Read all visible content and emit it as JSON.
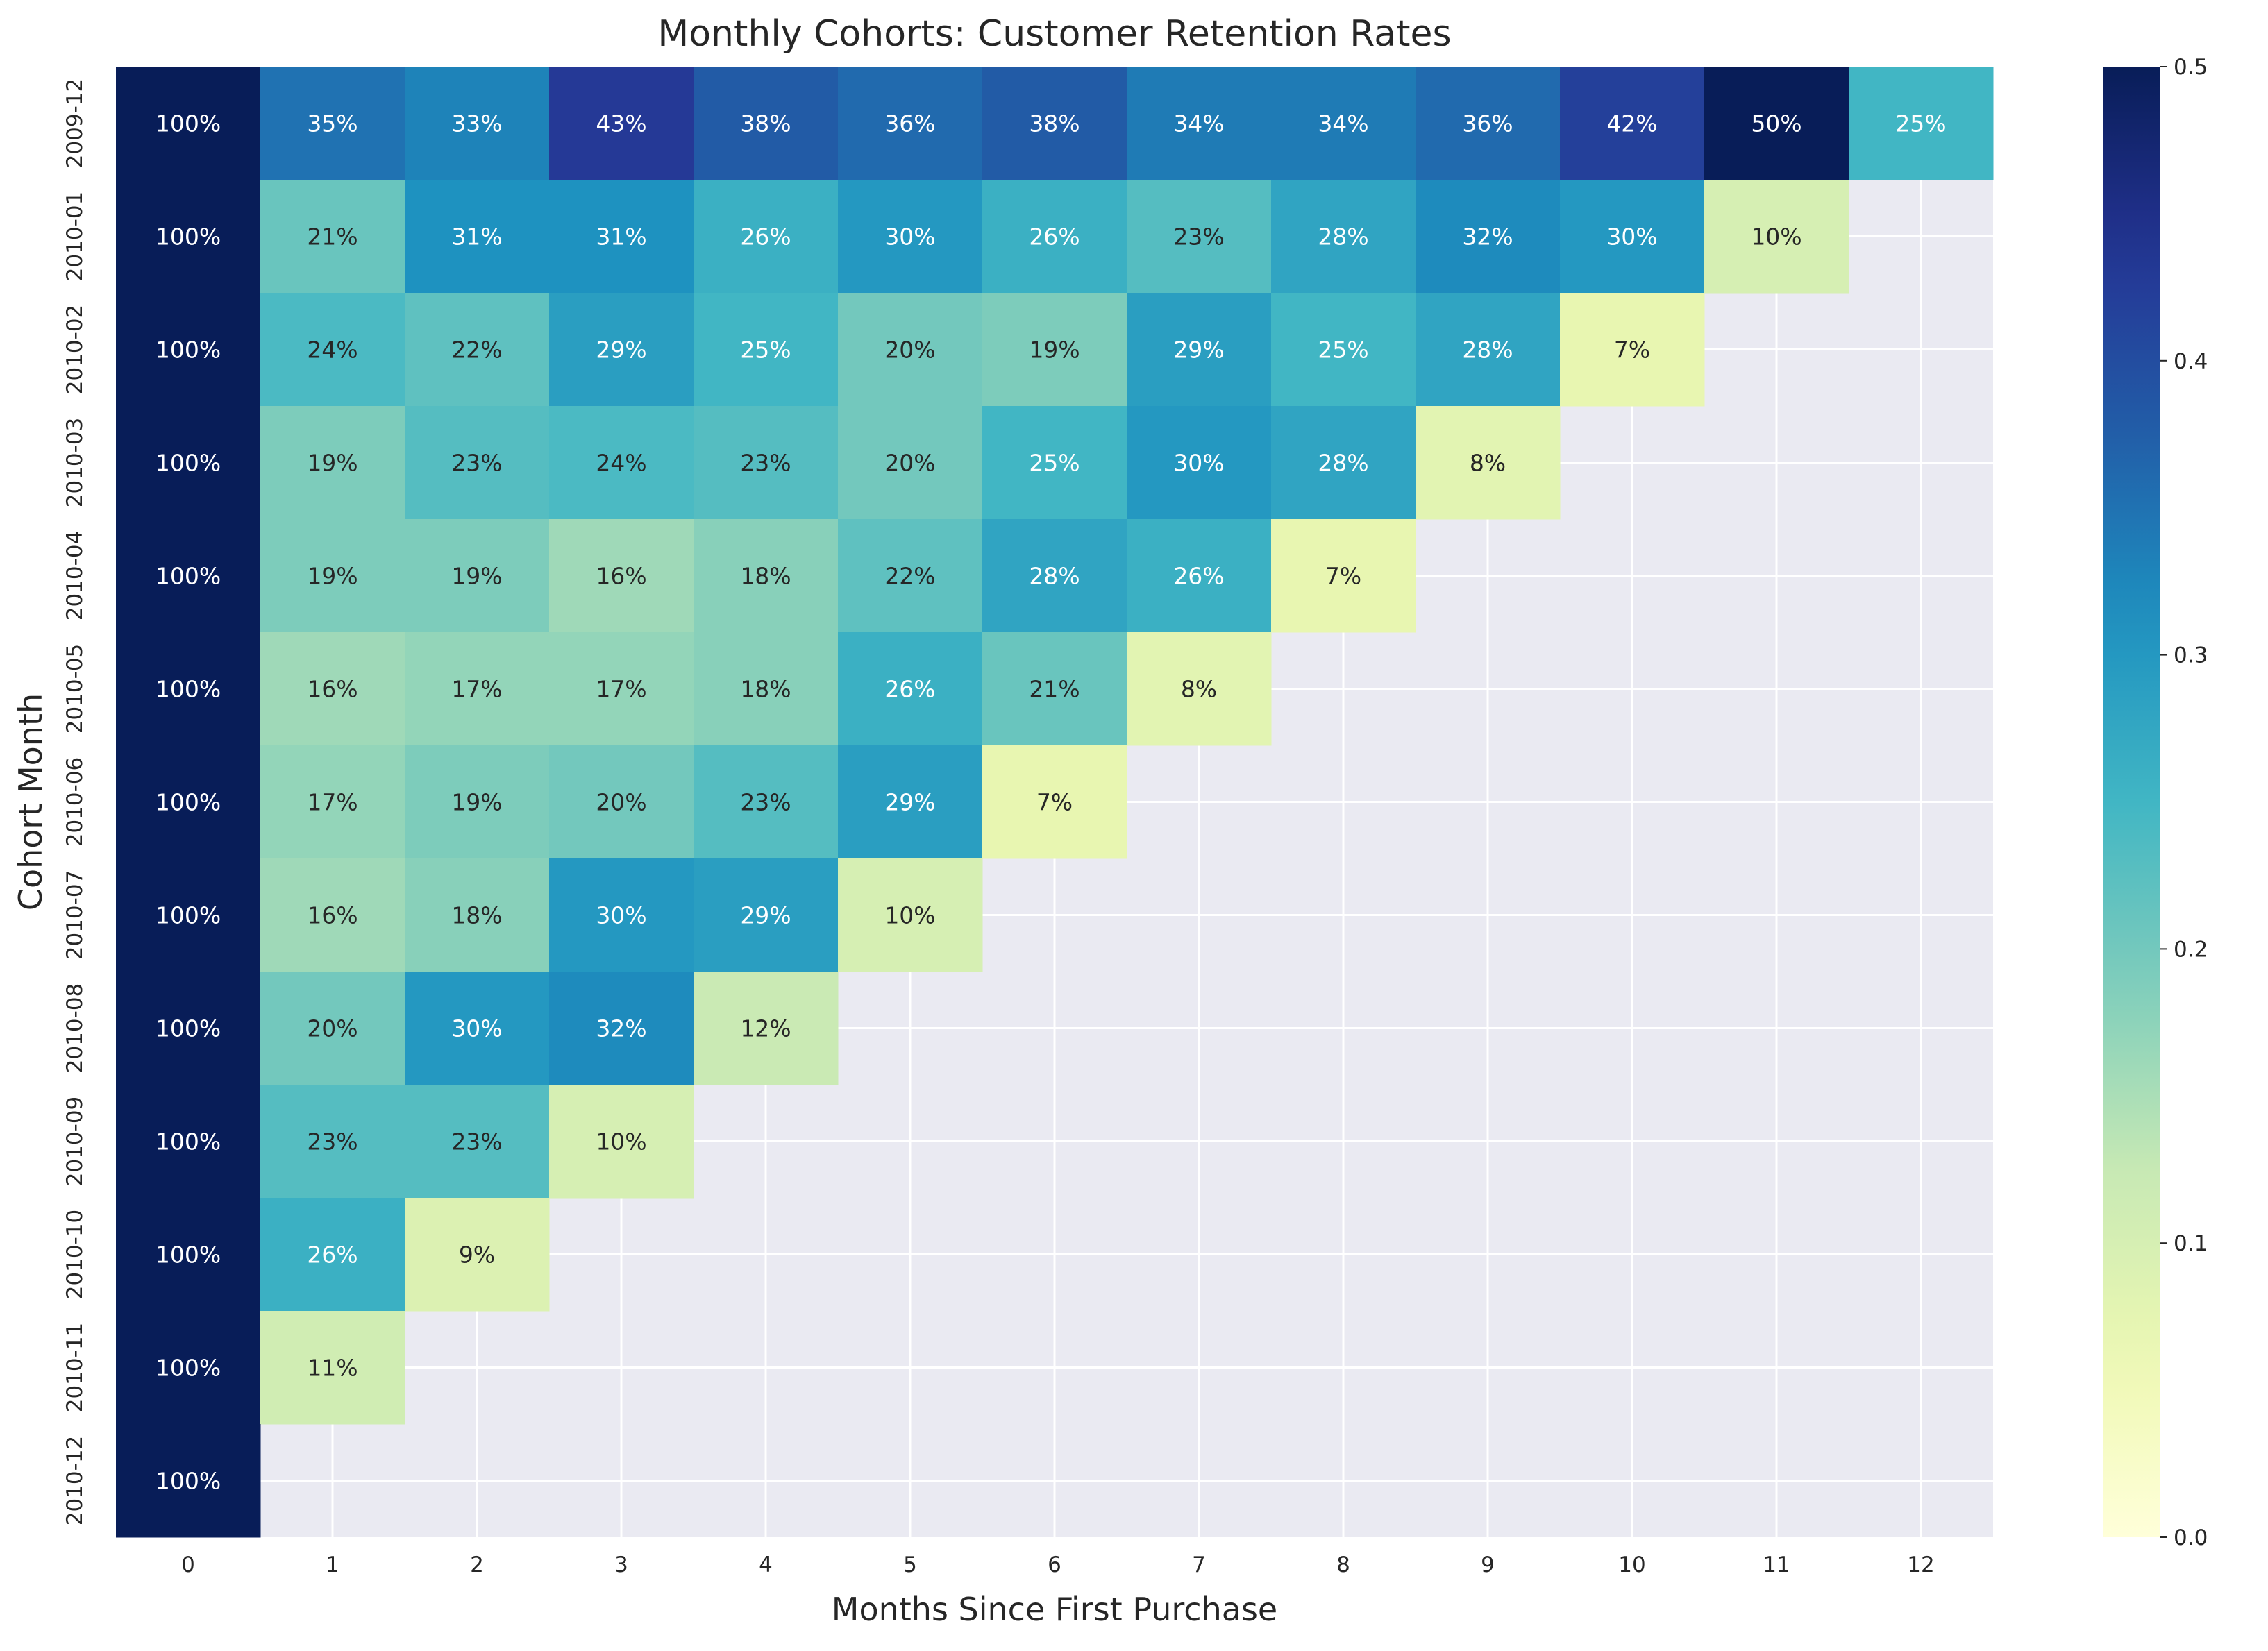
{
  "chart_data": {
    "type": "heatmap",
    "title": "Monthly Cohorts: Customer Retention Rates",
    "xlabel": "Months Since First Purchase",
    "ylabel": "Cohort Month",
    "x_categories": [
      "0",
      "1",
      "2",
      "3",
      "4",
      "5",
      "6",
      "7",
      "8",
      "9",
      "10",
      "11",
      "12"
    ],
    "y_categories": [
      "2009-12",
      "2010-01",
      "2010-02",
      "2010-03",
      "2010-04",
      "2010-05",
      "2010-06",
      "2010-07",
      "2010-08",
      "2010-09",
      "2010-10",
      "2010-11",
      "2010-12"
    ],
    "values": [
      [
        1.0,
        0.35,
        0.33,
        0.43,
        0.38,
        0.36,
        0.38,
        0.34,
        0.34,
        0.36,
        0.42,
        0.5,
        0.25
      ],
      [
        1.0,
        0.21,
        0.31,
        0.31,
        0.26,
        0.3,
        0.26,
        0.23,
        0.28,
        0.32,
        0.3,
        0.1
      ],
      [
        1.0,
        0.24,
        0.22,
        0.29,
        0.25,
        0.2,
        0.19,
        0.29,
        0.25,
        0.28,
        0.07
      ],
      [
        1.0,
        0.19,
        0.23,
        0.24,
        0.23,
        0.2,
        0.25,
        0.3,
        0.28,
        0.08
      ],
      [
        1.0,
        0.19,
        0.19,
        0.16,
        0.18,
        0.22,
        0.28,
        0.26,
        0.07
      ],
      [
        1.0,
        0.16,
        0.17,
        0.17,
        0.18,
        0.26,
        0.21,
        0.08
      ],
      [
        1.0,
        0.17,
        0.19,
        0.2,
        0.23,
        0.29,
        0.07
      ],
      [
        1.0,
        0.16,
        0.18,
        0.3,
        0.29,
        0.1
      ],
      [
        1.0,
        0.2,
        0.3,
        0.32,
        0.12
      ],
      [
        1.0,
        0.23,
        0.23,
        0.1
      ],
      [
        1.0,
        0.26,
        0.09
      ],
      [
        1.0,
        0.11
      ],
      [
        1.0
      ]
    ],
    "value_labels": [
      [
        "100%",
        "35%",
        "33%",
        "43%",
        "38%",
        "36%",
        "38%",
        "34%",
        "34%",
        "36%",
        "42%",
        "50%",
        "25%"
      ],
      [
        "100%",
        "21%",
        "31%",
        "31%",
        "26%",
        "30%",
        "26%",
        "23%",
        "28%",
        "32%",
        "30%",
        "10%"
      ],
      [
        "100%",
        "24%",
        "22%",
        "29%",
        "25%",
        "20%",
        "19%",
        "29%",
        "25%",
        "28%",
        "7%"
      ],
      [
        "100%",
        "19%",
        "23%",
        "24%",
        "23%",
        "20%",
        "25%",
        "30%",
        "28%",
        "8%"
      ],
      [
        "100%",
        "19%",
        "19%",
        "16%",
        "18%",
        "22%",
        "28%",
        "26%",
        "7%"
      ],
      [
        "100%",
        "16%",
        "17%",
        "17%",
        "18%",
        "26%",
        "21%",
        "8%"
      ],
      [
        "100%",
        "17%",
        "19%",
        "20%",
        "23%",
        "29%",
        "7%"
      ],
      [
        "100%",
        "16%",
        "18%",
        "30%",
        "29%",
        "10%"
      ],
      [
        "100%",
        "20%",
        "30%",
        "32%",
        "12%"
      ],
      [
        "100%",
        "23%",
        "23%",
        "10%"
      ],
      [
        "100%",
        "26%",
        "9%"
      ],
      [
        "100%",
        "11%"
      ],
      [
        "100%"
      ]
    ],
    "colorbar": {
      "colormap": "YlGnBu",
      "vmin": 0.0,
      "vmax": 0.5,
      "ticks": [
        "0.0",
        "0.1",
        "0.2",
        "0.3",
        "0.4",
        "0.5"
      ]
    },
    "grid": true,
    "background_color": "#eaeaf2"
  }
}
